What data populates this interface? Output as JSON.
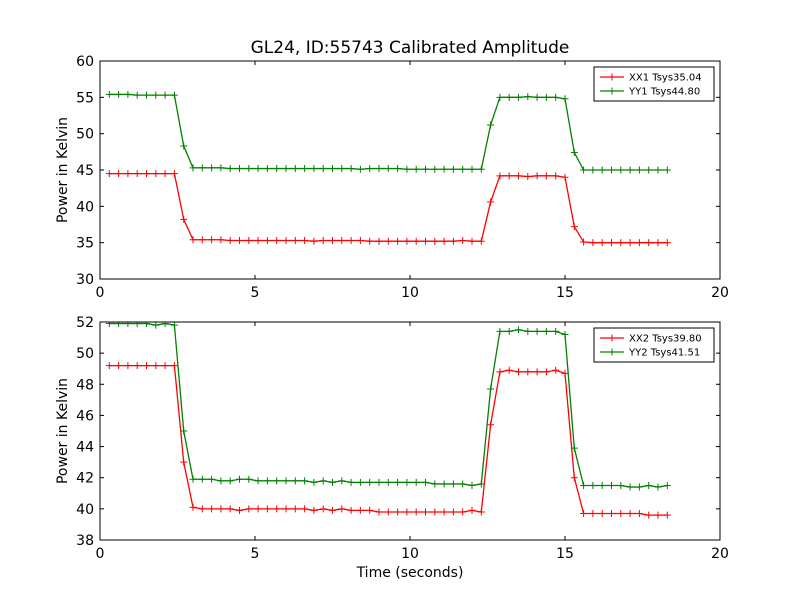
{
  "figure": {
    "title": "GL24, ID:55743 Calibrated Amplitude"
  },
  "chart_data": [
    {
      "type": "line",
      "title": "GL24, ID:55743 Calibrated Amplitude",
      "xlabel": "",
      "ylabel": "Power in Kelvin",
      "xlim": [
        0,
        20
      ],
      "ylim": [
        30,
        60
      ],
      "xticks": [
        0,
        5,
        10,
        15,
        20
      ],
      "yticks": [
        30,
        35,
        40,
        45,
        50,
        55,
        60
      ],
      "grid": false,
      "legend": "top-right",
      "marker": "+",
      "x": [
        0.3,
        0.6,
        0.9,
        1.2,
        1.5,
        1.8,
        2.1,
        2.4,
        2.7,
        3.0,
        3.3,
        3.6,
        3.9,
        4.2,
        4.5,
        4.8,
        5.1,
        5.4,
        5.7,
        6.0,
        6.3,
        6.6,
        6.9,
        7.2,
        7.5,
        7.8,
        8.1,
        8.4,
        8.7,
        9.0,
        9.3,
        9.6,
        9.9,
        10.2,
        10.5,
        10.8,
        11.1,
        11.4,
        11.7,
        12.0,
        12.3,
        12.6,
        12.9,
        13.2,
        13.5,
        13.8,
        14.1,
        14.4,
        14.7,
        15.0,
        15.3,
        15.6,
        15.9,
        16.2,
        16.5,
        16.8,
        17.1,
        17.4,
        17.7,
        18.0,
        18.3
      ],
      "series": [
        {
          "name": "XX1 Tsys35.04",
          "color": "#ff0000",
          "values": [
            44.5,
            44.5,
            44.5,
            44.5,
            44.5,
            44.5,
            44.5,
            44.5,
            38.2,
            35.4,
            35.4,
            35.4,
            35.4,
            35.3,
            35.3,
            35.3,
            35.3,
            35.3,
            35.3,
            35.3,
            35.3,
            35.3,
            35.2,
            35.3,
            35.3,
            35.3,
            35.3,
            35.3,
            35.2,
            35.2,
            35.2,
            35.2,
            35.2,
            35.2,
            35.2,
            35.2,
            35.2,
            35.2,
            35.3,
            35.2,
            35.2,
            40.6,
            44.2,
            44.2,
            44.2,
            44.1,
            44.2,
            44.2,
            44.2,
            44.0,
            37.2,
            35.1,
            35.0,
            35.0,
            35.0,
            35.0,
            35.0,
            35.0,
            35.0,
            35.0,
            35.0
          ]
        },
        {
          "name": "YY1 Tsys44.80",
          "color": "#008000",
          "values": [
            55.4,
            55.4,
            55.4,
            55.3,
            55.3,
            55.3,
            55.3,
            55.3,
            48.3,
            45.3,
            45.3,
            45.3,
            45.3,
            45.2,
            45.2,
            45.2,
            45.2,
            45.2,
            45.2,
            45.2,
            45.2,
            45.2,
            45.2,
            45.2,
            45.2,
            45.2,
            45.2,
            45.1,
            45.2,
            45.2,
            45.2,
            45.2,
            45.1,
            45.1,
            45.1,
            45.1,
            45.1,
            45.1,
            45.1,
            45.1,
            45.1,
            51.2,
            55.0,
            55.0,
            55.0,
            55.1,
            55.0,
            55.0,
            55.0,
            54.8,
            47.4,
            45.0,
            45.0,
            45.0,
            45.0,
            45.0,
            45.0,
            45.0,
            45.0,
            45.0,
            45.0
          ]
        }
      ]
    },
    {
      "type": "line",
      "title": "",
      "xlabel": "Time (seconds)",
      "ylabel": "Power in Kelvin",
      "xlim": [
        0,
        20
      ],
      "ylim": [
        38,
        52
      ],
      "xticks": [
        0,
        5,
        10,
        15,
        20
      ],
      "yticks": [
        38,
        40,
        42,
        44,
        46,
        48,
        50,
        52
      ],
      "grid": false,
      "legend": "top-right",
      "marker": "+",
      "x": [
        0.3,
        0.6,
        0.9,
        1.2,
        1.5,
        1.8,
        2.1,
        2.4,
        2.7,
        3.0,
        3.3,
        3.6,
        3.9,
        4.2,
        4.5,
        4.8,
        5.1,
        5.4,
        5.7,
        6.0,
        6.3,
        6.6,
        6.9,
        7.2,
        7.5,
        7.8,
        8.1,
        8.4,
        8.7,
        9.0,
        9.3,
        9.6,
        9.9,
        10.2,
        10.5,
        10.8,
        11.1,
        11.4,
        11.7,
        12.0,
        12.3,
        12.6,
        12.9,
        13.2,
        13.5,
        13.8,
        14.1,
        14.4,
        14.7,
        15.0,
        15.3,
        15.6,
        15.9,
        16.2,
        16.5,
        16.8,
        17.1,
        17.4,
        17.7,
        18.0,
        18.3
      ],
      "series": [
        {
          "name": "XX2 Tsys39.80",
          "color": "#ff0000",
          "values": [
            49.2,
            49.2,
            49.2,
            49.2,
            49.2,
            49.2,
            49.2,
            49.2,
            43.0,
            40.1,
            40.0,
            40.0,
            40.0,
            40.0,
            39.9,
            40.0,
            40.0,
            40.0,
            40.0,
            40.0,
            40.0,
            40.0,
            39.9,
            40.0,
            39.9,
            40.0,
            39.9,
            39.9,
            39.9,
            39.8,
            39.8,
            39.8,
            39.8,
            39.8,
            39.8,
            39.8,
            39.8,
            39.8,
            39.8,
            39.9,
            39.8,
            45.4,
            48.8,
            48.9,
            48.8,
            48.8,
            48.8,
            48.8,
            48.9,
            48.7,
            42.0,
            39.7,
            39.7,
            39.7,
            39.7,
            39.7,
            39.7,
            39.7,
            39.6,
            39.6,
            39.6
          ]
        },
        {
          "name": "YY2 Tsys41.51",
          "color": "#008000",
          "values": [
            51.9,
            51.9,
            51.9,
            51.9,
            51.9,
            51.8,
            51.9,
            51.8,
            45.0,
            41.9,
            41.9,
            41.9,
            41.8,
            41.8,
            41.9,
            41.9,
            41.8,
            41.8,
            41.8,
            41.8,
            41.8,
            41.8,
            41.7,
            41.8,
            41.7,
            41.8,
            41.7,
            41.7,
            41.7,
            41.7,
            41.7,
            41.7,
            41.7,
            41.7,
            41.7,
            41.6,
            41.6,
            41.6,
            41.6,
            41.5,
            41.6,
            47.7,
            51.4,
            51.4,
            51.5,
            51.4,
            51.4,
            51.4,
            51.4,
            51.2,
            43.9,
            41.5,
            41.5,
            41.5,
            41.5,
            41.5,
            41.4,
            41.4,
            41.5,
            41.4,
            41.5
          ]
        }
      ]
    }
  ]
}
